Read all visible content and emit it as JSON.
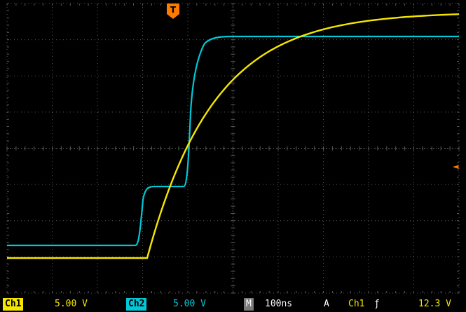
{
  "statusbar": {
    "ch1_label": "Ch1",
    "ch1_scale": "5.00 V",
    "ch2_label": "Ch2",
    "ch2_scale": "5.00 V",
    "timebase_label": "M",
    "timebase_value": "100ns",
    "trigger_mode": "A",
    "trigger_source": "Ch1",
    "trigger_slope_glyph": "ƒ",
    "trigger_level": "12.3 V"
  },
  "markers": {
    "trigger_position_glyph": "T",
    "trigger_level_glyph": "◄"
  },
  "colors": {
    "ch1": "#f5e600",
    "ch2": "#00c8d8",
    "trigger_marker": "#ff7a00",
    "grid": "#5a5a5a"
  }
}
